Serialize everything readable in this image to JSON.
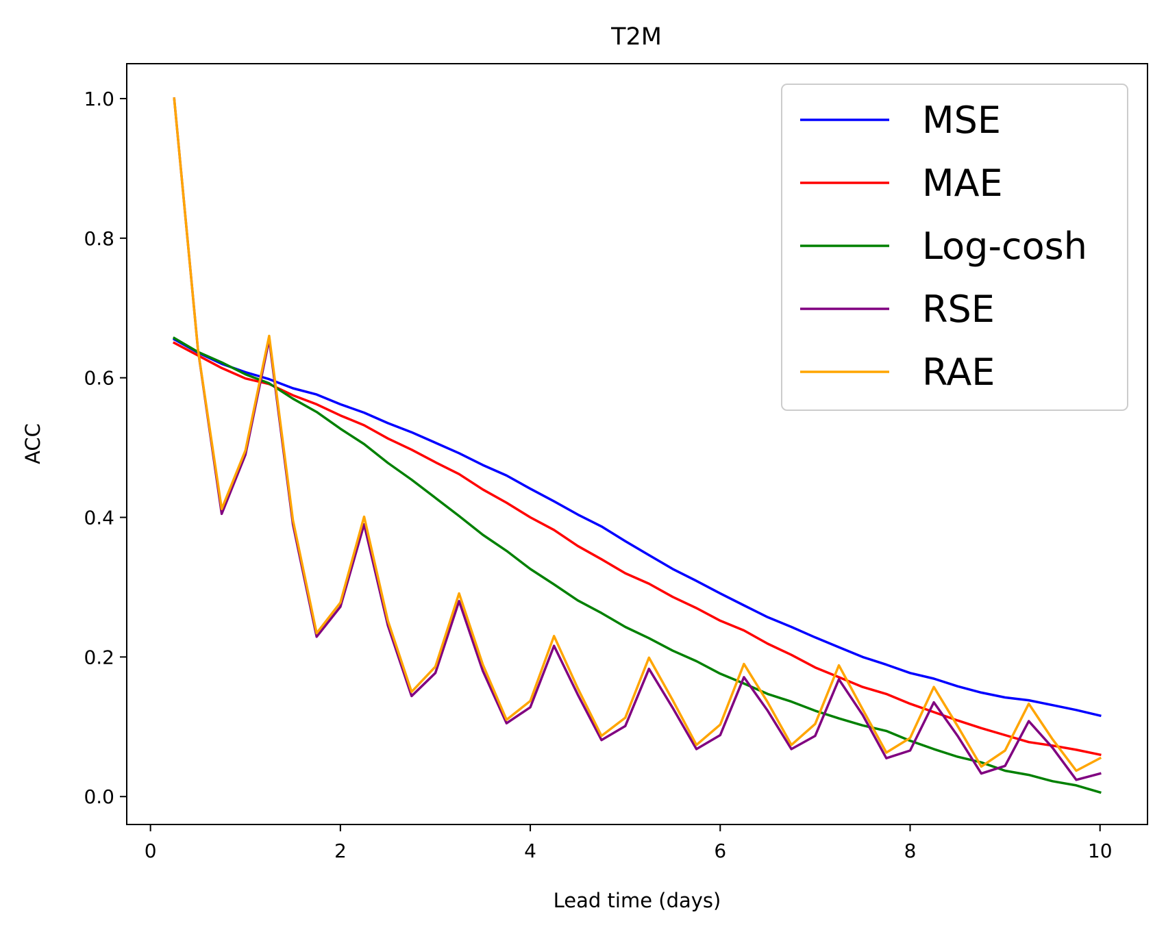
{
  "chart_data": {
    "type": "line",
    "title": "T2M",
    "xlabel": "Lead time (days)",
    "ylabel": "ACC",
    "xlim": [
      -0.25,
      10.5
    ],
    "ylim": [
      -0.04,
      1.05
    ],
    "xticks": [
      0,
      2,
      4,
      6,
      8,
      10
    ],
    "xtick_labels": [
      "0",
      "2",
      "4",
      "6",
      "8",
      "10"
    ],
    "yticks": [
      0.0,
      0.2,
      0.4,
      0.6,
      0.8,
      1.0
    ],
    "ytick_labels": [
      "0.0",
      "0.2",
      "0.4",
      "0.6",
      "0.8",
      "1.0"
    ],
    "grid": false,
    "legend_position": "top-right",
    "x": [
      0.25,
      0.5,
      0.75,
      1.0,
      1.25,
      1.5,
      1.75,
      2.0,
      2.25,
      2.5,
      2.75,
      3.0,
      3.25,
      3.5,
      3.75,
      4.0,
      4.25,
      4.5,
      4.75,
      5.0,
      5.25,
      5.5,
      5.75,
      6.0,
      6.25,
      6.5,
      6.75,
      7.0,
      7.25,
      7.5,
      7.75,
      8.0,
      8.25,
      8.5,
      8.75,
      9.0,
      9.25,
      9.5,
      9.75,
      10.0
    ],
    "series": [
      {
        "name": "MSE",
        "color": "#0000ff",
        "values": [
          0.655,
          0.636,
          0.62,
          0.608,
          0.598,
          0.585,
          0.576,
          0.562,
          0.55,
          0.535,
          0.522,
          0.507,
          0.492,
          0.475,
          0.46,
          0.441,
          0.423,
          0.404,
          0.387,
          0.366,
          0.346,
          0.326,
          0.309,
          0.291,
          0.274,
          0.257,
          0.243,
          0.228,
          0.214,
          0.2,
          0.189,
          0.177,
          0.169,
          0.158,
          0.149,
          0.142,
          0.138,
          0.131,
          0.124,
          0.116
        ]
      },
      {
        "name": "MAE",
        "color": "#ff0000",
        "values": [
          0.65,
          0.632,
          0.614,
          0.599,
          0.591,
          0.575,
          0.562,
          0.546,
          0.532,
          0.513,
          0.497,
          0.479,
          0.462,
          0.44,
          0.421,
          0.4,
          0.382,
          0.359,
          0.34,
          0.32,
          0.305,
          0.286,
          0.27,
          0.252,
          0.238,
          0.219,
          0.203,
          0.185,
          0.171,
          0.157,
          0.147,
          0.133,
          0.121,
          0.109,
          0.098,
          0.088,
          0.078,
          0.073,
          0.067,
          0.06
        ]
      },
      {
        "name": "Log-cosh",
        "color": "#008000",
        "values": [
          0.657,
          0.637,
          0.622,
          0.605,
          0.592,
          0.57,
          0.551,
          0.527,
          0.505,
          0.478,
          0.454,
          0.428,
          0.402,
          0.375,
          0.352,
          0.326,
          0.304,
          0.281,
          0.263,
          0.243,
          0.227,
          0.209,
          0.194,
          0.176,
          0.162,
          0.147,
          0.136,
          0.123,
          0.112,
          0.102,
          0.094,
          0.08,
          0.068,
          0.057,
          0.049,
          0.037,
          0.031,
          0.022,
          0.016,
          0.006
        ]
      },
      {
        "name": "RSE",
        "color": "#800080",
        "values": [
          1.0,
          0.64,
          0.405,
          0.49,
          0.655,
          0.39,
          0.229,
          0.272,
          0.39,
          0.245,
          0.144,
          0.177,
          0.28,
          0.18,
          0.105,
          0.128,
          0.216,
          0.146,
          0.081,
          0.101,
          0.183,
          0.127,
          0.068,
          0.088,
          0.171,
          0.123,
          0.068,
          0.087,
          0.168,
          0.117,
          0.055,
          0.066,
          0.135,
          0.087,
          0.033,
          0.044,
          0.108,
          0.07,
          0.024,
          0.033
        ]
      },
      {
        "name": "RAE",
        "color": "#ffa500",
        "values": [
          1.0,
          0.64,
          0.412,
          0.496,
          0.66,
          0.396,
          0.234,
          0.278,
          0.401,
          0.252,
          0.15,
          0.186,
          0.291,
          0.189,
          0.11,
          0.137,
          0.23,
          0.155,
          0.087,
          0.113,
          0.199,
          0.138,
          0.074,
          0.103,
          0.19,
          0.135,
          0.074,
          0.104,
          0.188,
          0.125,
          0.063,
          0.084,
          0.157,
          0.101,
          0.043,
          0.066,
          0.133,
          0.082,
          0.037,
          0.055
        ]
      }
    ]
  }
}
